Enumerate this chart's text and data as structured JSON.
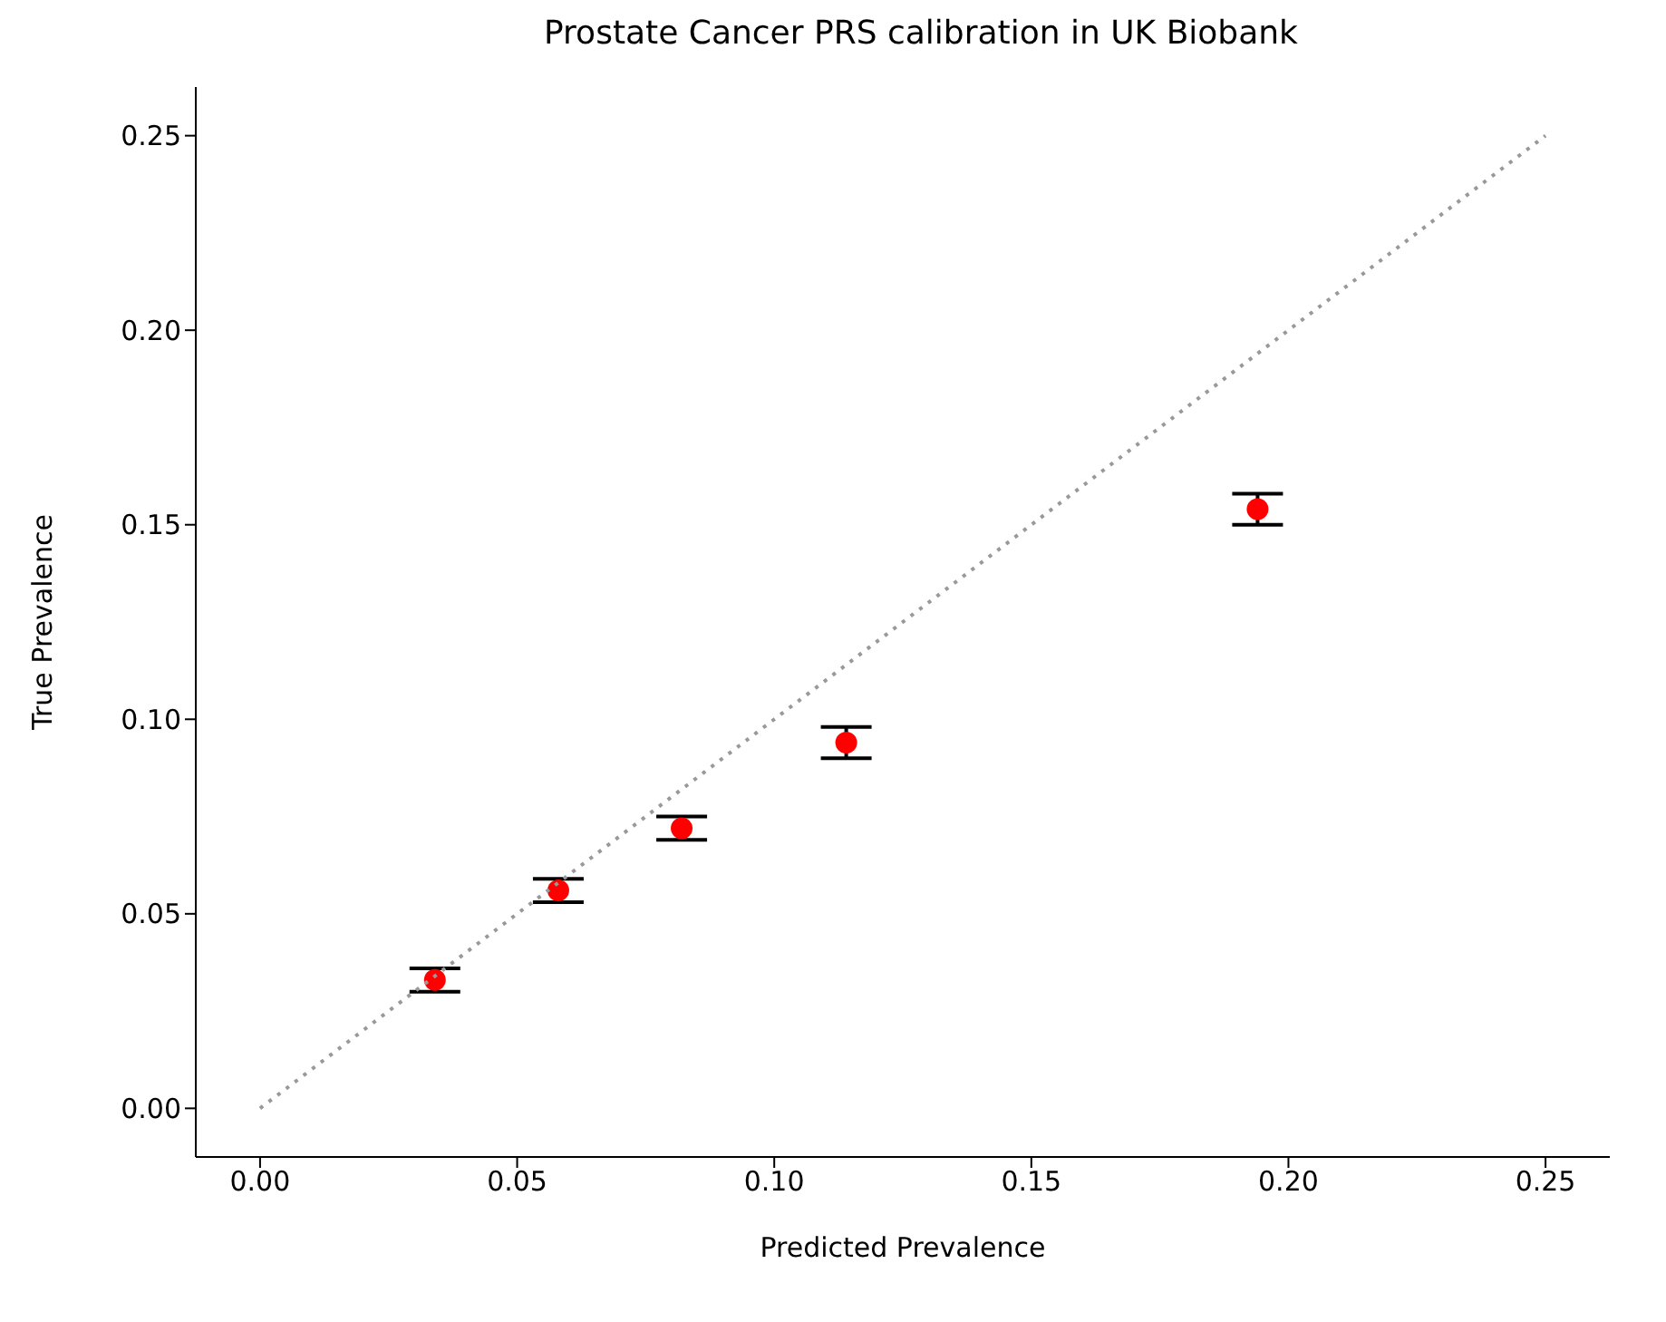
{
  "chart_data": {
    "type": "scatter",
    "title": "Prostate Cancer PRS calibration in UK Biobank",
    "xlabel": "Predicted Prevalence",
    "ylabel": "True Prevalence",
    "xlim": [
      -0.0125,
      0.2625
    ],
    "ylim": [
      -0.0125,
      0.2625
    ],
    "xticks": [
      {
        "value": 0,
        "label": "0.00"
      },
      0.05,
      {
        "value": 0.1,
        "label": "0.10"
      },
      0.15,
      {
        "value": 0.2,
        "label": "0.20"
      },
      0.25
    ],
    "yticks": [
      {
        "value": 0,
        "label": "0.00"
      },
      0.05,
      {
        "value": 0.1,
        "label": "0.10"
      },
      0.15,
      {
        "value": 0.2,
        "label": "0.20"
      },
      0.25
    ],
    "grid": false,
    "legend": false,
    "marker": "circle",
    "series": [
      {
        "color": "#ff0000",
        "x": [
          0.034,
          0.058,
          0.082,
          0.114,
          0.194
        ],
        "values": [
          0.033,
          0.056,
          0.072,
          0.094,
          0.154
        ],
        "errors": [
          0.003,
          0.003,
          0.003,
          0.004,
          0.004
        ]
      },
      {
        "type": "line",
        "color": "#999999",
        "line_style": "dotted",
        "marker": "none",
        "x": [
          0,
          0.25
        ],
        "values": [
          0,
          0.25
        ]
      }
    ]
  }
}
